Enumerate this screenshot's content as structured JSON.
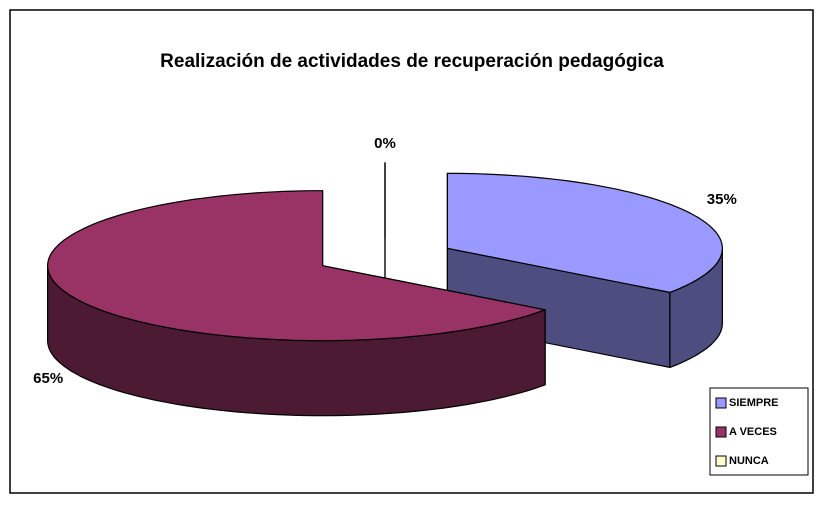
{
  "chart_data": {
    "type": "pie",
    "title": "Realización de actividades  de recuperación pedagógica",
    "categories": [
      "SIEMPRE",
      "A VECES",
      "NUNCA"
    ],
    "values": [
      35,
      65,
      0
    ],
    "value_labels": [
      "35%",
      "65%",
      "0%"
    ],
    "colors": [
      "#9999ff",
      "#993366",
      "#ffffcc"
    ],
    "legend": "right"
  }
}
